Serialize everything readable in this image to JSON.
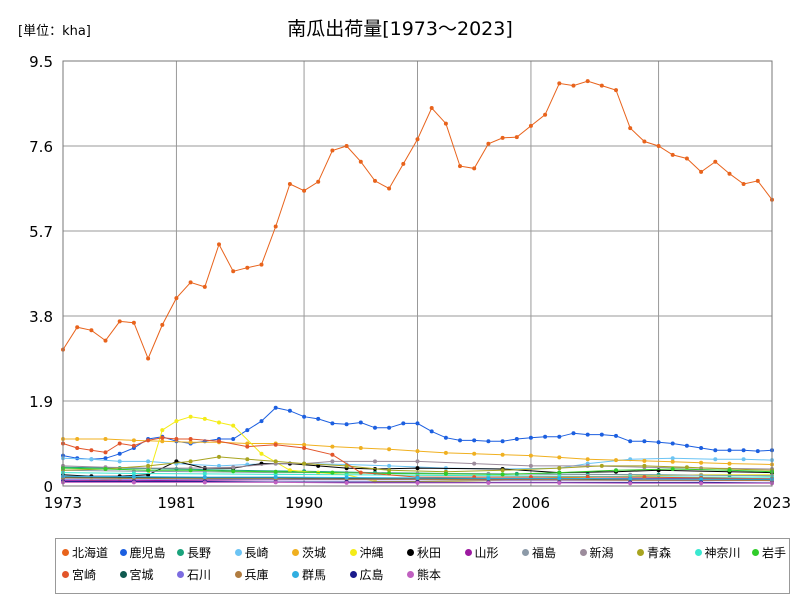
{
  "chart_data": {
    "type": "line",
    "title": "南瓜出荷量[1973～2023]",
    "unit_label": "[単位：kha]",
    "ylim": [
      0,
      9.5
    ],
    "yticks": [
      "0",
      "1.9",
      "3.8",
      "5.7",
      "7.6",
      "9.5"
    ],
    "xlim": [
      1973,
      2023
    ],
    "xticks": [
      "1973",
      "1981",
      "1990",
      "1998",
      "2006",
      "2015",
      "2023"
    ],
    "grid": true,
    "legend_position": "bottom",
    "series": [
      {
        "name": "北海道",
        "color": "#e8631c",
        "x": [
          1973,
          1974,
          1975,
          1976,
          1977,
          1978,
          1979,
          1980,
          1981,
          1982,
          1983,
          1984,
          1985,
          1986,
          1987,
          1988,
          1989,
          1990,
          1991,
          1992,
          1993,
          1994,
          1995,
          1996,
          1997,
          1998,
          1999,
          2000,
          2001,
          2002,
          2003,
          2004,
          2005,
          2006,
          2007,
          2008,
          2009,
          2010,
          2011,
          2012,
          2013,
          2014,
          2015,
          2016,
          2017,
          2018,
          2019,
          2020,
          2021,
          2022,
          2023
        ],
        "y": [
          3.05,
          3.55,
          3.48,
          3.25,
          3.68,
          3.65,
          2.85,
          3.6,
          4.2,
          4.55,
          4.45,
          5.4,
          4.8,
          4.88,
          4.95,
          5.8,
          6.75,
          6.6,
          6.8,
          7.5,
          7.6,
          7.25,
          6.82,
          6.65,
          7.2,
          7.75,
          8.45,
          8.1,
          7.15,
          7.1,
          7.65,
          7.78,
          7.8,
          8.05,
          8.3,
          9.0,
          8.95,
          9.05,
          8.95,
          8.85,
          8.0,
          7.7,
          7.6,
          7.4,
          7.32,
          7.02,
          7.25,
          6.98,
          6.75,
          6.82,
          6.4
        ]
      },
      {
        "name": "鹿児島",
        "color": "#1c5fe0",
        "x": [
          1973,
          1974,
          1975,
          1976,
          1977,
          1978,
          1979,
          1980,
          1981,
          1982,
          1983,
          1984,
          1985,
          1986,
          1987,
          1988,
          1989,
          1990,
          1991,
          1992,
          1993,
          1994,
          1995,
          1996,
          1997,
          1998,
          1999,
          2000,
          2001,
          2002,
          2003,
          2004,
          2005,
          2006,
          2007,
          2008,
          2009,
          2010,
          2011,
          2012,
          2013,
          2014,
          2015,
          2016,
          2017,
          2018,
          2019,
          2020,
          2021,
          2022,
          2023
        ],
        "y": [
          0.68,
          0.62,
          0.6,
          0.62,
          0.72,
          0.85,
          1.05,
          1.1,
          1.0,
          0.95,
          1.0,
          1.05,
          1.05,
          1.25,
          1.45,
          1.75,
          1.68,
          1.55,
          1.5,
          1.4,
          1.38,
          1.42,
          1.3,
          1.3,
          1.4,
          1.4,
          1.22,
          1.08,
          1.02,
          1.02,
          1.0,
          1.0,
          1.05,
          1.08,
          1.1,
          1.1,
          1.18,
          1.15,
          1.15,
          1.12,
          1.0,
          1.0,
          0.98,
          0.95,
          0.9,
          0.85,
          0.8,
          0.8,
          0.8,
          0.78,
          0.8
        ]
      },
      {
        "name": "長野",
        "color": "#1aa37c",
        "x": [
          1973,
          1977,
          1981,
          1985,
          1990,
          1995,
          2000,
          2005,
          2010,
          2015,
          2020,
          2023
        ],
        "y": [
          0.42,
          0.4,
          0.38,
          0.35,
          0.33,
          0.3,
          0.28,
          0.27,
          0.26,
          0.25,
          0.24,
          0.23
        ]
      },
      {
        "name": "長崎",
        "color": "#6cc4f4",
        "x": [
          1973,
          1975,
          1977,
          1979,
          1981,
          1984,
          1986,
          1988,
          1990,
          1993,
          1996,
          2000,
          2004,
          2008,
          2010,
          2013,
          2016,
          2019,
          2021,
          2023
        ],
        "y": [
          0.62,
          0.6,
          0.55,
          0.55,
          0.5,
          0.45,
          0.48,
          0.5,
          0.5,
          0.48,
          0.45,
          0.4,
          0.38,
          0.4,
          0.5,
          0.6,
          0.62,
          0.6,
          0.6,
          0.58
        ]
      },
      {
        "name": "茨城",
        "color": "#f0b020",
        "x": [
          1973,
          1974,
          1976,
          1978,
          1980,
          1982,
          1984,
          1986,
          1988,
          1990,
          1992,
          1994,
          1996,
          1998,
          2000,
          2002,
          2004,
          2006,
          2008,
          2010,
          2012,
          2014,
          2016,
          2018,
          2020,
          2023
        ],
        "y": [
          1.05,
          1.05,
          1.05,
          1.02,
          1.0,
          0.98,
          0.98,
          0.95,
          0.95,
          0.92,
          0.88,
          0.85,
          0.82,
          0.78,
          0.74,
          0.72,
          0.7,
          0.68,
          0.64,
          0.6,
          0.58,
          0.56,
          0.54,
          0.52,
          0.5,
          0.48
        ]
      },
      {
        "name": "沖縄",
        "color": "#f4ec18",
        "x": [
          1973,
          1975,
          1977,
          1979,
          1980,
          1981,
          1982,
          1983,
          1984,
          1985,
          1987,
          1989,
          1991,
          1993,
          1995,
          1998,
          2003,
          2008,
          2013,
          2018,
          2023
        ],
        "y": [
          0.1,
          0.12,
          0.15,
          0.2,
          1.25,
          1.45,
          1.55,
          1.5,
          1.42,
          1.35,
          0.72,
          0.35,
          0.3,
          0.25,
          0.1,
          0.1,
          0.12,
          0.18,
          0.22,
          0.25,
          0.25
        ]
      },
      {
        "name": "秋田",
        "color": "#000000",
        "x": [
          1973,
          1975,
          1977,
          1979,
          1981,
          1983,
          1985,
          1987,
          1989,
          1991,
          1993,
          1995,
          1998,
          2004,
          2008,
          2012,
          2015,
          2020,
          2023
        ],
        "y": [
          0.25,
          0.22,
          0.22,
          0.25,
          0.55,
          0.4,
          0.4,
          0.5,
          0.5,
          0.45,
          0.4,
          0.38,
          0.4,
          0.38,
          0.3,
          0.32,
          0.35,
          0.32,
          0.3
        ]
      },
      {
        "name": "山形",
        "color": "#9c1aa0",
        "x": [
          1973,
          1978,
          1983,
          1988,
          1993,
          1998,
          2003,
          2008,
          2013,
          2018,
          2023
        ],
        "y": [
          0.12,
          0.12,
          0.13,
          0.14,
          0.15,
          0.15,
          0.15,
          0.16,
          0.17,
          0.17,
          0.16
        ]
      },
      {
        "name": "福島",
        "color": "#8c9aa8",
        "x": [
          1973,
          1978,
          1983,
          1988,
          1993,
          1998,
          2003,
          2008,
          2013,
          2018,
          2023
        ],
        "y": [
          0.35,
          0.33,
          0.32,
          0.3,
          0.3,
          0.28,
          0.27,
          0.26,
          0.25,
          0.24,
          0.23
        ]
      },
      {
        "name": "新潟",
        "color": "#9c8c9c",
        "x": [
          1973,
          1976,
          1979,
          1982,
          1985,
          1988,
          1990,
          1992,
          1995,
          1998,
          2002,
          2006,
          2010,
          2014,
          2018,
          2023
        ],
        "y": [
          0.45,
          0.42,
          0.4,
          0.4,
          0.42,
          0.5,
          0.5,
          0.55,
          0.55,
          0.55,
          0.5,
          0.45,
          0.45,
          0.42,
          0.4,
          0.38
        ]
      },
      {
        "name": "青森",
        "color": "#a8a420",
        "x": [
          1973,
          1976,
          1979,
          1982,
          1984,
          1986,
          1988,
          1990,
          1993,
          1996,
          2000,
          2004,
          2008,
          2011,
          2014,
          2017,
          2020,
          2023
        ],
        "y": [
          0.35,
          0.38,
          0.45,
          0.55,
          0.65,
          0.6,
          0.55,
          0.5,
          0.45,
          0.35,
          0.32,
          0.35,
          0.4,
          0.45,
          0.45,
          0.42,
          0.38,
          0.35
        ]
      },
      {
        "name": "神奈川",
        "color": "#3ae8d0",
        "x": [
          1973,
          1978,
          1983,
          1988,
          1993,
          1998,
          2003,
          2008,
          2013,
          2018,
          2023
        ],
        "y": [
          0.3,
          0.28,
          0.27,
          0.26,
          0.25,
          0.24,
          0.23,
          0.22,
          0.21,
          0.2,
          0.2
        ]
      },
      {
        "name": "岩手",
        "color": "#30cc2a",
        "x": [
          1973,
          1976,
          1979,
          1982,
          1985,
          1988,
          1992,
          1996,
          2000,
          2004,
          2008,
          2012,
          2016,
          2020,
          2023
        ],
        "y": [
          0.4,
          0.38,
          0.35,
          0.35,
          0.33,
          0.32,
          0.3,
          0.28,
          0.27,
          0.26,
          0.3,
          0.35,
          0.38,
          0.35,
          0.32
        ]
      },
      {
        "name": "宮崎",
        "color": "#e2552a",
        "x": [
          1973,
          1974,
          1975,
          1976,
          1977,
          1978,
          1979,
          1980,
          1981,
          1982,
          1984,
          1986,
          1988,
          1990,
          1992,
          1994,
          1998,
          2002,
          2006,
          2010,
          2014,
          2018,
          2023
        ],
        "y": [
          0.95,
          0.85,
          0.8,
          0.75,
          0.95,
          0.9,
          1.02,
          1.08,
          1.05,
          1.05,
          1.0,
          0.88,
          0.92,
          0.85,
          0.7,
          0.3,
          0.2,
          0.2,
          0.2,
          0.2,
          0.2,
          0.18,
          0.16
        ]
      },
      {
        "name": "宮城",
        "color": "#105a50",
        "x": [
          1973,
          1978,
          1983,
          1988,
          1993,
          1998,
          2003,
          2008,
          2013,
          2018,
          2023
        ],
        "y": [
          0.2,
          0.19,
          0.18,
          0.18,
          0.17,
          0.17,
          0.16,
          0.16,
          0.15,
          0.15,
          0.14
        ]
      },
      {
        "name": "石川",
        "color": "#7c6ce0",
        "x": [
          1973,
          1978,
          1983,
          1988,
          1993,
          1998,
          2003,
          2008,
          2013,
          2018,
          2023
        ],
        "y": [
          0.15,
          0.15,
          0.15,
          0.14,
          0.14,
          0.14,
          0.13,
          0.13,
          0.13,
          0.12,
          0.12
        ]
      },
      {
        "name": "兵庫",
        "color": "#b07c40",
        "x": [
          1973,
          1978,
          1983,
          1988,
          1993,
          1998,
          2003,
          2008,
          2013,
          2018,
          2023
        ],
        "y": [
          0.18,
          0.17,
          0.16,
          0.16,
          0.15,
          0.15,
          0.14,
          0.14,
          0.13,
          0.13,
          0.12
        ]
      },
      {
        "name": "群馬",
        "color": "#30aee0",
        "x": [
          1973,
          1978,
          1983,
          1988,
          1993,
          1998,
          2003,
          2008,
          2013,
          2018,
          2023
        ],
        "y": [
          0.22,
          0.21,
          0.2,
          0.2,
          0.19,
          0.18,
          0.17,
          0.17,
          0.16,
          0.15,
          0.15
        ]
      },
      {
        "name": "広島",
        "color": "#1a1a8c",
        "x": [
          1973,
          1978,
          1983,
          1988,
          1993,
          1998,
          2003,
          2008,
          2013,
          2018,
          2023
        ],
        "y": [
          0.1,
          0.1,
          0.1,
          0.09,
          0.09,
          0.09,
          0.08,
          0.08,
          0.08,
          0.08,
          0.07
        ]
      },
      {
        "name": "熊本",
        "color": "#c060c0",
        "x": [
          1973,
          1978,
          1983,
          1988,
          1993,
          1998,
          2003,
          2008,
          2013,
          2018,
          2023
        ],
        "y": [
          0.08,
          0.08,
          0.08,
          0.08,
          0.07,
          0.07,
          0.07,
          0.07,
          0.06,
          0.06,
          0.06
        ]
      }
    ]
  }
}
